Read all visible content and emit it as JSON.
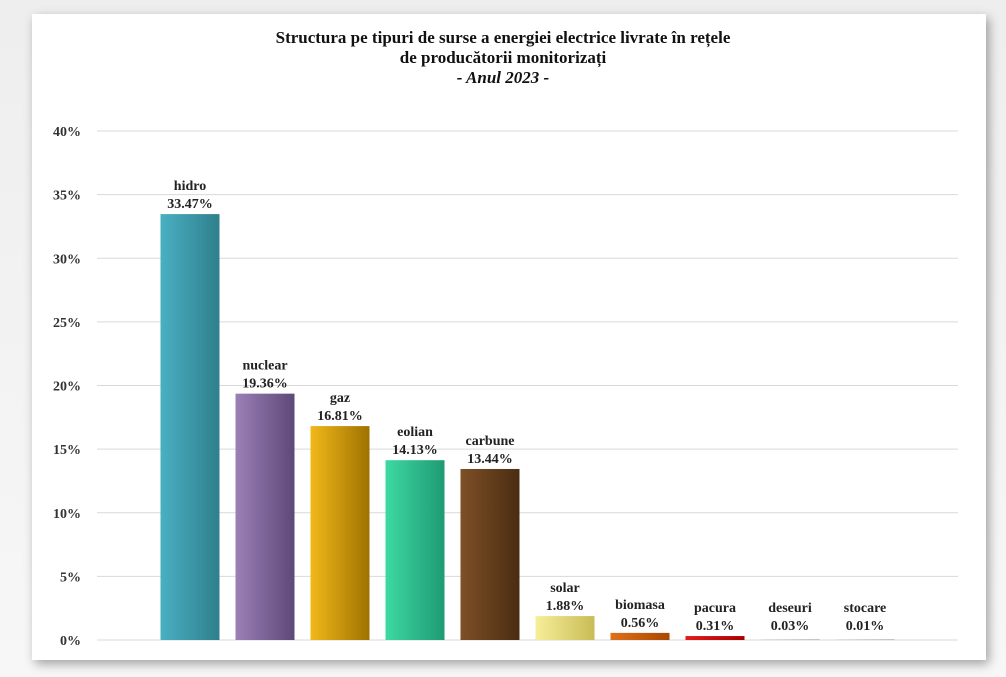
{
  "chart_data": {
    "type": "bar",
    "title_lines": [
      "Structura pe tipuri de surse a energiei electrice livrate în rețele",
      "de producătorii monitorizați",
      "- Anul 2023 -"
    ],
    "categories": [
      "hidro",
      "nuclear",
      "gaz",
      "eolian",
      "carbune",
      "solar",
      "biomasa",
      "pacura",
      "deseuri",
      "stocare"
    ],
    "values": [
      33.47,
      19.36,
      16.81,
      14.13,
      13.44,
      1.88,
      0.56,
      0.31,
      0.03,
      0.01
    ],
    "value_labels": [
      "33.47%",
      "19.36%",
      "16.81%",
      "14.13%",
      "13.44%",
      "1.88%",
      "0.56%",
      "0.31%",
      "0.03%",
      "0.01%"
    ],
    "colors": [
      [
        "#4ab0c2",
        "#2f7f8c"
      ],
      [
        "#9b80b6",
        "#5e4878"
      ],
      [
        "#f2b81a",
        "#9e7200"
      ],
      [
        "#3dd9a3",
        "#1f9a73"
      ],
      [
        "#7e5026",
        "#4a2c12"
      ],
      [
        "#f6ef9a",
        "#c9bb56"
      ],
      [
        "#e0701a",
        "#a84600"
      ],
      [
        "#e21b1b",
        "#a80000"
      ],
      [
        "#d0d0d0",
        "#999999"
      ],
      [
        "#d0d0d0",
        "#999999"
      ]
    ],
    "ylim": [
      0,
      40
    ],
    "yticks": [
      0,
      5,
      10,
      15,
      20,
      25,
      30,
      35,
      40
    ],
    "ytick_labels": [
      "0%",
      "5%",
      "10%",
      "15%",
      "20%",
      "25%",
      "30%",
      "35%",
      "40%"
    ],
    "grid": true,
    "xlabel": "",
    "ylabel": ""
  }
}
